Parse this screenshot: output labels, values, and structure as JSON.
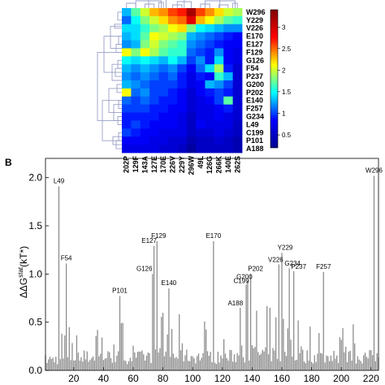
{
  "chart_data": [
    {
      "type": "heatmap",
      "rows": [
        "W296",
        "Y229",
        "V226",
        "E170",
        "E127",
        "F129",
        "G126",
        "F54",
        "P237",
        "G200",
        "P202",
        "E140",
        "F257",
        "G234",
        "L49",
        "C199",
        "P101",
        "A188"
      ],
      "columns": [
        "202P",
        "129F",
        "143A",
        "127E",
        "170E",
        "226V",
        "229Y",
        "296W",
        "49L",
        "126G",
        "266K",
        "140E",
        "262S"
      ],
      "values": [
        [
          1.3,
          1.7,
          2.0,
          2.3,
          2.4,
          2.6,
          2.7,
          3.2,
          2.6,
          2.4,
          2.2,
          2.0,
          1.9
        ],
        [
          1.1,
          1.5,
          1.8,
          2.0,
          2.2,
          2.4,
          2.5,
          2.9,
          2.3,
          2.1,
          1.9,
          1.7,
          1.6
        ],
        [
          1.4,
          1.4,
          1.6,
          1.8,
          1.9,
          2.1,
          2.2,
          1.8,
          1.5,
          1.4,
          1.3,
          1.2,
          1.2
        ],
        [
          1.3,
          1.4,
          1.7,
          2.1,
          2.0,
          1.9,
          1.8,
          1.3,
          1.2,
          1.1,
          1.0,
          0.9,
          0.8
        ],
        [
          1.2,
          1.3,
          1.8,
          2.0,
          1.8,
          1.7,
          1.6,
          1.2,
          1.1,
          1.0,
          0.9,
          0.8,
          0.8
        ],
        [
          2.1,
          1.8,
          2.1,
          1.9,
          1.7,
          1.6,
          1.6,
          1.1,
          1.0,
          0.9,
          1.2,
          0.8,
          0.7
        ],
        [
          1.5,
          1.4,
          1.5,
          1.4,
          1.3,
          1.5,
          1.3,
          1.0,
          1.2,
          0.9,
          1.4,
          0.8,
          0.7
        ],
        [
          1.3,
          1.2,
          1.3,
          1.2,
          1.1,
          1.2,
          1.0,
          0.8,
          1.1,
          1.4,
          1.9,
          0.9,
          0.6
        ],
        [
          1.2,
          1.1,
          1.2,
          1.1,
          1.0,
          1.1,
          0.9,
          0.7,
          0.9,
          0.8,
          1.6,
          1.3,
          0.6
        ],
        [
          1.3,
          1.2,
          1.1,
          1.0,
          1.0,
          1.0,
          0.9,
          0.7,
          0.8,
          1.3,
          1.2,
          1.0,
          0.6
        ],
        [
          2.1,
          1.1,
          1.2,
          1.0,
          1.0,
          0.9,
          0.8,
          0.6,
          0.8,
          0.9,
          1.0,
          0.9,
          0.6
        ],
        [
          1.1,
          1.0,
          1.1,
          1.0,
          0.9,
          0.9,
          0.8,
          0.6,
          0.7,
          0.8,
          1.0,
          1.7,
          0.6
        ],
        [
          1.0,
          1.0,
          1.0,
          0.9,
          0.9,
          0.8,
          0.8,
          0.6,
          0.7,
          0.7,
          0.8,
          0.9,
          0.6
        ],
        [
          0.9,
          0.9,
          0.9,
          0.9,
          0.8,
          0.8,
          0.7,
          0.5,
          0.7,
          0.7,
          0.8,
          0.7,
          0.6
        ],
        [
          0.9,
          1.0,
          0.9,
          0.8,
          0.8,
          0.8,
          0.7,
          0.5,
          0.8,
          0.7,
          0.7,
          0.7,
          0.5
        ],
        [
          1.0,
          0.9,
          0.8,
          0.8,
          0.7,
          0.7,
          0.7,
          0.5,
          0.6,
          0.6,
          0.7,
          0.6,
          0.5
        ],
        [
          0.8,
          0.8,
          0.8,
          0.7,
          0.7,
          0.6,
          0.6,
          0.4,
          0.5,
          0.5,
          0.6,
          0.5,
          0.4
        ],
        [
          0.7,
          0.7,
          0.7,
          0.7,
          0.6,
          0.6,
          0.5,
          0.3,
          0.5,
          0.5,
          0.5,
          0.5,
          0.4
        ]
      ],
      "colorbar": {
        "min": 0.2,
        "max": 3.4,
        "ticks": [
          "3",
          "2.5",
          "2",
          "1.5",
          "1",
          "0.5"
        ],
        "tick_values": [
          3,
          2.5,
          2,
          1.5,
          1,
          0.5
        ]
      },
      "colormap": [
        "#00008f",
        "#0000ff",
        "#00ffff",
        "#ffff00",
        "#ff0000",
        "#800000"
      ],
      "dendrogram_color": "#9aa0c8",
      "grid": false
    },
    {
      "type": "bar",
      "panel_label": "B",
      "ylabel_main": "ΔΔG",
      "ylabel_sup": "stat",
      "ylabel_unit": "(kT*)",
      "xlim": [
        1,
        225
      ],
      "ylim": [
        0,
        2.2
      ],
      "xticks": [
        "20",
        "40",
        "60",
        "80",
        "100",
        "120",
        "140",
        "160",
        "180",
        "200",
        "220"
      ],
      "xtick_values": [
        20,
        40,
        60,
        80,
        100,
        120,
        140,
        160,
        180,
        200,
        220
      ],
      "yticks": [
        "0.0",
        "0.5",
        "1.0",
        "1.5",
        "2.0"
      ],
      "ytick_values": [
        0,
        0.5,
        1.0,
        1.5,
        2.0
      ],
      "bar_color": "#8c8c8c",
      "grid": false,
      "highlights": [
        {
          "label": "L49",
          "x": 10,
          "value": 1.91
        },
        {
          "label": "F54",
          "x": 15,
          "value": 1.11
        },
        {
          "label": "P101",
          "x": 51,
          "value": 0.77
        },
        {
          "label": "G126",
          "x": 73,
          "value": 1.0
        },
        {
          "label": "E127",
          "x": 74,
          "value": 1.29
        },
        {
          "label": "F129",
          "x": 76,
          "value": 1.34
        },
        {
          "label": "E140",
          "x": 84,
          "value": 0.85
        },
        {
          "label": "E170",
          "x": 114,
          "value": 1.34
        },
        {
          "label": "A188",
          "x": 132,
          "value": 0.65
        },
        {
          "label": "C199",
          "x": 136,
          "value": 0.89
        },
        {
          "label": "G200",
          "x": 137,
          "value": 0.93
        },
        {
          "label": "P202",
          "x": 139,
          "value": 1.0
        },
        {
          "label": "V226",
          "x": 158,
          "value": 1.1
        },
        {
          "label": "Y229",
          "x": 160,
          "value": 1.22
        },
        {
          "label": "G234",
          "x": 165,
          "value": 1.06
        },
        {
          "label": "P237",
          "x": 168,
          "value": 1.03
        },
        {
          "label": "F257",
          "x": 188,
          "value": 1.02
        },
        {
          "label": "W296",
          "x": 222,
          "value": 2.02
        }
      ],
      "background_profile": {
        "x": [
          1,
          20,
          40,
          60,
          80,
          100,
          120,
          140,
          160,
          180,
          200,
          225
        ],
        "typical_level": [
          0.15,
          0.18,
          0.2,
          0.18,
          0.22,
          0.2,
          0.18,
          0.25,
          0.22,
          0.2,
          0.18,
          0.2
        ],
        "peak_level": [
          0.3,
          0.45,
          0.5,
          0.45,
          0.55,
          0.5,
          0.45,
          0.65,
          0.55,
          0.5,
          0.45,
          0.5
        ]
      }
    }
  ]
}
